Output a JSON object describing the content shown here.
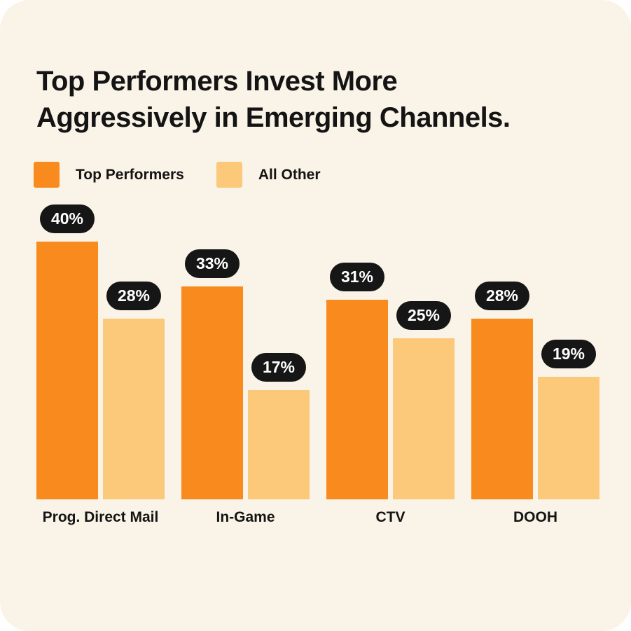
{
  "title": "Top Performers Invest More\nAggressively in Emerging Channels.",
  "legend": [
    {
      "label": "Top Performers",
      "color": "#F98A1D"
    },
    {
      "label": "All Other",
      "color": "#FCC879"
    }
  ],
  "colors": {
    "card_background": "#FAF3E7",
    "page_background": "#FFFFFF",
    "series_dark": "#F98A1D",
    "series_light": "#FCC879",
    "value_pill_background": "#161616",
    "value_pill_text": "#FFFFFF",
    "text": "#141414"
  },
  "chart_data": {
    "type": "bar",
    "title": "Top Performers Invest More Aggressively in Emerging Channels.",
    "categories": [
      "Prog. Direct Mail",
      "In-Game",
      "CTV",
      "DOOH"
    ],
    "series": [
      {
        "name": "Top Performers",
        "color": "#F98A1D",
        "values": [
          40,
          33,
          31,
          28
        ]
      },
      {
        "name": "All Other",
        "color": "#FCC879",
        "values": [
          28,
          17,
          25,
          19
        ]
      }
    ],
    "value_suffix": "%",
    "ylim": [
      0,
      44
    ],
    "grid": false,
    "legend_position": "top-left",
    "value_labels": "pill above each bar"
  }
}
